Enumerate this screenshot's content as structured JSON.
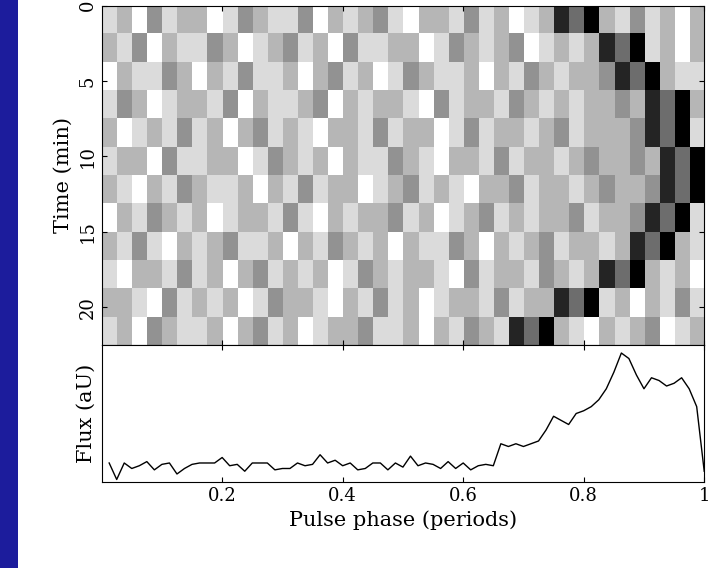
{
  "chart_data": [
    {
      "type": "heatmap",
      "y_label": "Time (min)",
      "xlim": [
        0,
        1
      ],
      "xticks": [
        0.2,
        0.4,
        0.6,
        0.8,
        1
      ],
      "ylim": [
        22.5,
        0
      ],
      "yticks": [
        0,
        5,
        10,
        15,
        20
      ],
      "tick_labels": "y",
      "cells": [
        [
          3,
          4,
          2,
          5,
          3,
          4,
          4,
          2,
          3,
          5,
          4,
          3,
          3,
          5,
          2,
          4,
          3,
          4,
          5,
          3,
          2,
          4,
          4,
          3,
          5,
          3,
          4,
          2,
          3,
          4,
          8,
          6,
          9,
          4,
          3,
          5,
          3,
          4,
          2,
          4
        ],
        [
          4,
          3,
          5,
          2,
          4,
          3,
          3,
          5,
          4,
          2,
          3,
          4,
          5,
          3,
          4,
          2,
          5,
          3,
          3,
          4,
          4,
          2,
          3,
          5,
          4,
          3,
          4,
          5,
          2,
          3,
          4,
          3,
          4,
          8,
          6,
          9,
          3,
          4,
          2,
          4
        ],
        [
          2,
          4,
          3,
          3,
          5,
          4,
          2,
          4,
          3,
          5,
          3,
          3,
          4,
          2,
          4,
          5,
          3,
          4,
          2,
          3,
          5,
          4,
          3,
          3,
          4,
          2,
          4,
          3,
          5,
          4,
          3,
          4,
          4,
          5,
          8,
          6,
          9,
          4,
          3,
          3
        ],
        [
          3,
          5,
          4,
          2,
          3,
          4,
          4,
          3,
          5,
          2,
          4,
          3,
          3,
          4,
          5,
          2,
          4,
          3,
          4,
          4,
          3,
          2,
          5,
          3,
          4,
          4,
          3,
          5,
          4,
          3,
          4,
          3,
          4,
          4,
          5,
          4,
          8,
          6,
          9,
          4
        ],
        [
          4,
          2,
          3,
          4,
          3,
          5,
          3,
          4,
          2,
          4,
          5,
          3,
          4,
          3,
          2,
          4,
          4,
          3,
          5,
          3,
          4,
          4,
          2,
          3,
          5,
          3,
          4,
          4,
          3,
          4,
          5,
          3,
          4,
          4,
          4,
          5,
          8,
          6,
          9,
          3
        ],
        [
          3,
          4,
          4,
          2,
          5,
          3,
          3,
          4,
          4,
          2,
          3,
          5,
          4,
          3,
          4,
          2,
          4,
          3,
          3,
          5,
          4,
          3,
          2,
          4,
          4,
          3,
          5,
          3,
          4,
          4,
          3,
          4,
          5,
          4,
          4,
          5,
          4,
          8,
          6,
          9
        ],
        [
          4,
          3,
          2,
          4,
          3,
          5,
          4,
          3,
          3,
          4,
          2,
          4,
          3,
          5,
          3,
          4,
          4,
          2,
          3,
          4,
          5,
          3,
          4,
          3,
          2,
          4,
          4,
          5,
          3,
          4,
          4,
          3,
          4,
          5,
          4,
          4,
          5,
          8,
          6,
          9
        ],
        [
          2,
          4,
          3,
          5,
          4,
          3,
          4,
          2,
          3,
          4,
          4,
          3,
          5,
          3,
          2,
          4,
          3,
          4,
          4,
          5,
          3,
          4,
          2,
          3,
          4,
          5,
          3,
          4,
          3,
          4,
          4,
          5,
          3,
          4,
          4,
          5,
          8,
          6,
          9,
          3
        ],
        [
          4,
          3,
          5,
          3,
          2,
          4,
          3,
          4,
          5,
          3,
          3,
          4,
          2,
          4,
          3,
          5,
          4,
          3,
          4,
          2,
          4,
          3,
          3,
          5,
          4,
          2,
          4,
          3,
          4,
          5,
          3,
          4,
          4,
          3,
          4,
          8,
          6,
          9,
          4,
          3
        ],
        [
          3,
          2,
          4,
          4,
          3,
          5,
          3,
          4,
          2,
          4,
          5,
          3,
          4,
          3,
          4,
          2,
          3,
          5,
          4,
          3,
          4,
          4,
          3,
          2,
          5,
          3,
          4,
          4,
          3,
          5,
          4,
          3,
          4,
          8,
          6,
          9,
          4,
          3,
          4,
          2
        ],
        [
          4,
          4,
          3,
          2,
          5,
          3,
          4,
          3,
          4,
          2,
          3,
          5,
          4,
          4,
          3,
          2,
          4,
          3,
          5,
          3,
          4,
          2,
          3,
          4,
          4,
          3,
          5,
          3,
          4,
          4,
          8,
          6,
          9,
          3,
          4,
          2,
          4,
          3,
          5,
          3
        ],
        [
          3,
          4,
          2,
          5,
          4,
          3,
          3,
          4,
          2,
          4,
          5,
          3,
          4,
          2,
          3,
          4,
          4,
          5,
          3,
          3,
          4,
          2,
          4,
          3,
          5,
          4,
          3,
          8,
          6,
          9,
          4,
          3,
          2,
          4,
          3,
          4,
          5,
          2,
          3,
          4
        ]
      ]
    },
    {
      "type": "line",
      "x_label": "Pulse phase (periods)",
      "y_label": "Flux (aU)",
      "color": "#000000",
      "xlim": [
        0,
        1
      ],
      "xticks": [
        0.2,
        0.4,
        0.6,
        0.8,
        1
      ],
      "ylim": [
        0,
        100
      ],
      "yticks": [],
      "tick_labels": "x",
      "x": [
        0.0125,
        0.025,
        0.0375,
        0.05,
        0.0625,
        0.075,
        0.0875,
        0.1,
        0.1125,
        0.125,
        0.1375,
        0.15,
        0.1625,
        0.175,
        0.1875,
        0.2,
        0.2125,
        0.225,
        0.2375,
        0.25,
        0.2625,
        0.275,
        0.2875,
        0.3,
        0.3125,
        0.325,
        0.3375,
        0.35,
        0.3625,
        0.375,
        0.3875,
        0.4,
        0.4125,
        0.425,
        0.4375,
        0.45,
        0.4625,
        0.475,
        0.4875,
        0.5,
        0.5125,
        0.525,
        0.5375,
        0.55,
        0.5625,
        0.575,
        0.5875,
        0.6,
        0.6125,
        0.625,
        0.6375,
        0.65,
        0.6625,
        0.675,
        0.6875,
        0.7,
        0.7125,
        0.725,
        0.7375,
        0.75,
        0.7625,
        0.775,
        0.7875,
        0.8,
        0.8125,
        0.825,
        0.8375,
        0.85,
        0.8625,
        0.875,
        0.8875,
        0.9,
        0.9125,
        0.925,
        0.9375,
        0.95,
        0.9625,
        0.975,
        0.9875,
        1.0
      ],
      "values": [
        14,
        2,
        14,
        10,
        12,
        15,
        9,
        13,
        14,
        6,
        10,
        13,
        14,
        14,
        14,
        18,
        12,
        13,
        8,
        14,
        14,
        14,
        9,
        10,
        10,
        14,
        12,
        13,
        20,
        14,
        16,
        12,
        14,
        9,
        10,
        14,
        14,
        9,
        14,
        11,
        19,
        12,
        14,
        13,
        10,
        15,
        10,
        14,
        9,
        12,
        13,
        12,
        28,
        26,
        28,
        26,
        28,
        30,
        38,
        48,
        45,
        42,
        50,
        52,
        55,
        60,
        68,
        80,
        94,
        90,
        78,
        68,
        76,
        74,
        70,
        72,
        76,
        68,
        55,
        8
      ]
    }
  ]
}
